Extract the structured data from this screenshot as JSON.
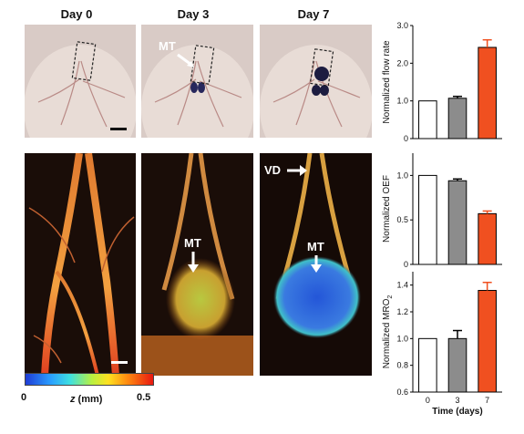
{
  "day_labels": [
    "Day 0",
    "Day 3",
    "Day 7"
  ],
  "annotations": {
    "mt": "MT",
    "vd": "VD"
  },
  "colorbar": {
    "min_label": "0",
    "max_label": "0.5",
    "title_z": "z",
    "title_unit": " (mm)"
  },
  "chart_data": [
    {
      "type": "bar",
      "categories": [
        "0",
        "3",
        "7"
      ],
      "values": [
        1.0,
        1.07,
        2.42
      ],
      "errors": [
        0.0,
        0.05,
        0.2
      ],
      "ylabel": "Normalized flow rate",
      "ylim": [
        0,
        3.0
      ],
      "yticks": [
        "0",
        "1.0",
        "2.0",
        "3.0"
      ],
      "colors": [
        "#ffffff",
        "#8c8c8c",
        "#f05020"
      ]
    },
    {
      "type": "bar",
      "categories": [
        "0",
        "3",
        "7"
      ],
      "values": [
        1.0,
        0.94,
        0.57
      ],
      "errors": [
        0.0,
        0.02,
        0.03
      ],
      "ylabel": "Normalized OEF",
      "ylim": [
        0,
        1.25
      ],
      "yticks": [
        "0",
        "0.5",
        "1.0"
      ],
      "colors": [
        "#ffffff",
        "#8c8c8c",
        "#f05020"
      ]
    },
    {
      "type": "bar",
      "categories": [
        "0",
        "3",
        "7"
      ],
      "values": [
        1.0,
        1.0,
        1.36
      ],
      "errors": [
        0.0,
        0.06,
        0.06
      ],
      "ylabel": "Normalized MRO",
      "ylabel_sub": "2",
      "ylim": [
        0.6,
        1.5
      ],
      "yticks": [
        "0.6",
        "0.8",
        "1.0",
        "1.2",
        "1.4"
      ],
      "xlabel": "Time (days)",
      "colors": [
        "#ffffff",
        "#8c8c8c",
        "#f05020"
      ]
    }
  ]
}
